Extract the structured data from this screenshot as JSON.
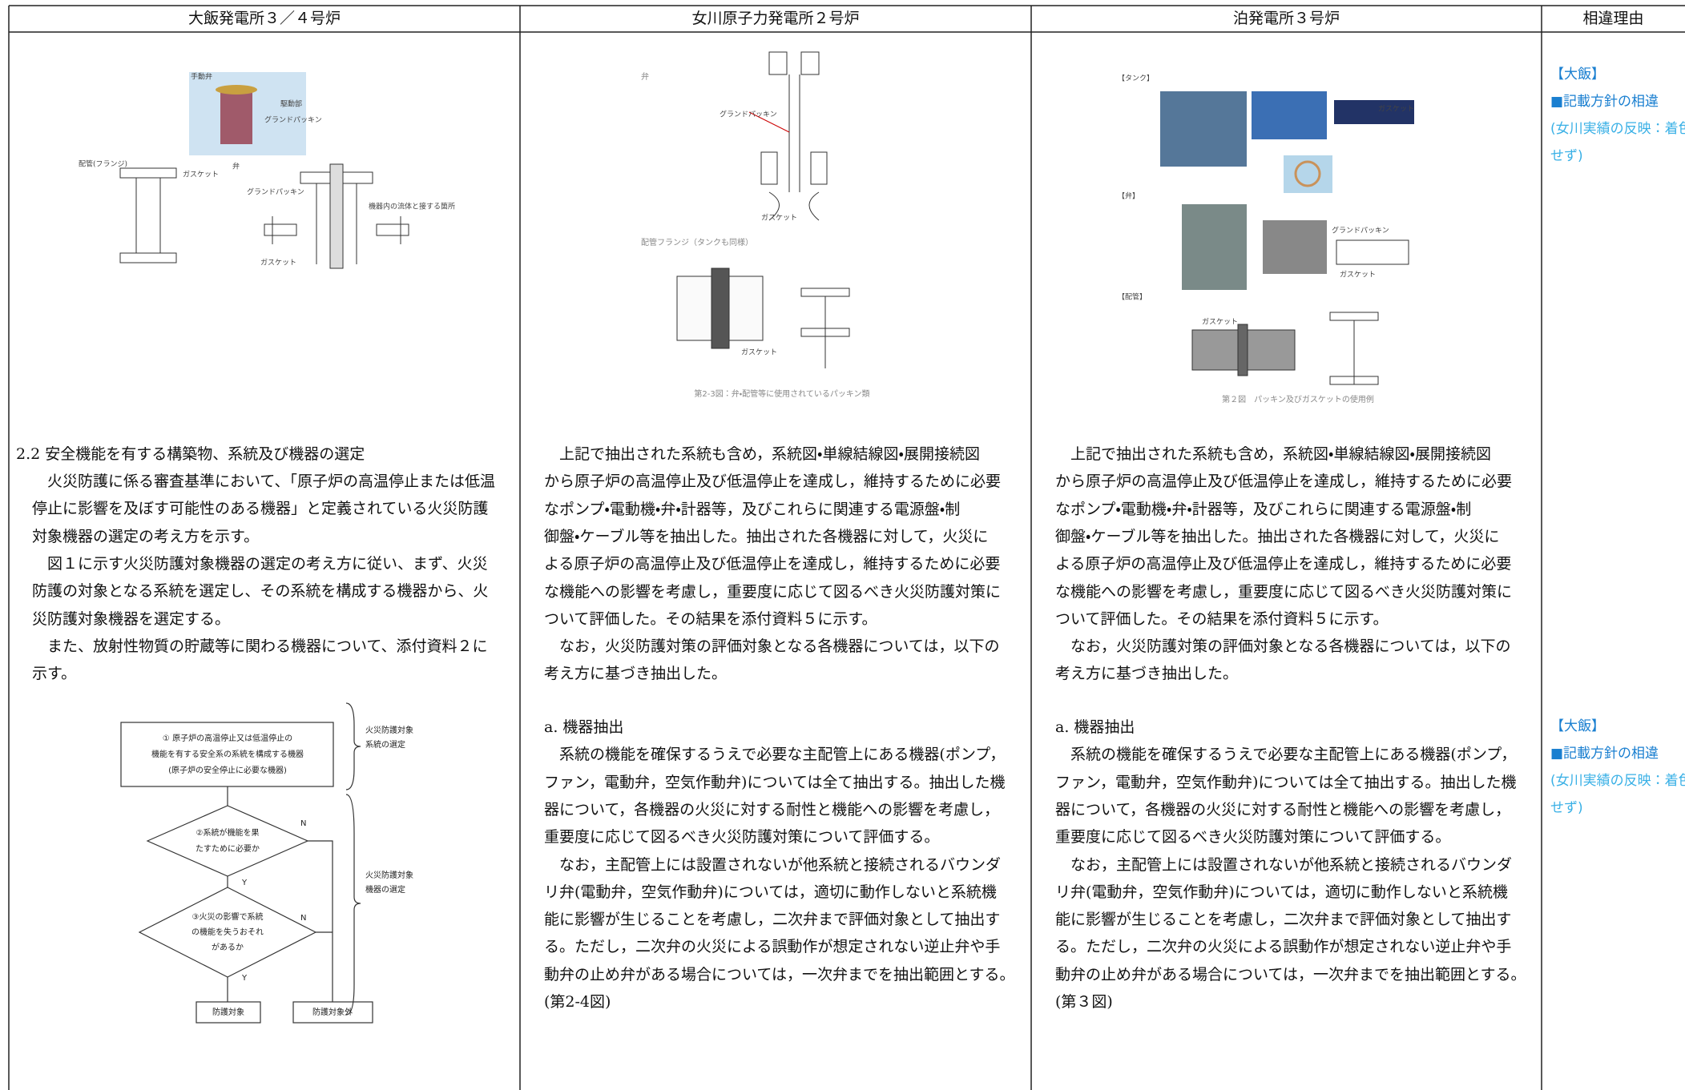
{
  "header": [
    "大飯発電所３／４号炉",
    "女川原子力発電所２号炉",
    "泊発電所３号炉",
    "相違理由"
  ],
  "columns": [
    {
      "blocks": [
        {
          "lines": [
            "2.2 安全機能を有する構築物、系統及び機器の選定"
          ]
        },
        {
          "lines": [
            "　火災防護に係る審査基準において、「原子炉の高温停止または低温",
            "停止に影響を及ぼす可能性のある機器」と定義されている火災防護",
            "対象機器の選定の考え方を示す。",
            "　図１に示す火災防護対象機器の選定の考え方に従い、まず、火災",
            "防護の対象となる系統を選定し、その系統を構成する機器から、火",
            "災防護対象機器を選定する。",
            "　また、放射性物質の貯蔵等に関わる機器について、添付資料２に",
            "示す。"
          ]
        }
      ],
      "figure_labels": [
        "手動弁",
        "駆動部",
        "グランドパッキン",
        "配管(フランジ)",
        "弁",
        "ガスケット",
        "グランドパッキン",
        "機器内の流体と接する箇所",
        "ガスケット"
      ]
    },
    {
      "blocks": [
        {
          "lines": [
            "　上記で抽出された系統も含め，系統図・単線結線図・展開接続図",
            "から原子炉の高温停止及び低温停止を達成し，維持するために必要",
            "なポンプ・電動機・弁・計器等，及びこれらに関連する電源盤・制",
            "御盤・ケーブル等を抽出した。抽出された各機器に対して，火災に",
            "よる原子炉の高温停止及び低温停止を達成し，維持するために必要",
            "な機能への影響を考慮し，重要度に応じて図るべき火災防護対策に",
            "ついて評価した。その結果を添付資料５に示す。",
            "　なお，火災防護対策の評価対象となる各機器については，以下の",
            "考え方に基づき抽出した。"
          ]
        },
        {
          "lines": [
            "a. 機器抽出",
            "　系統の機能を確保するうえで必要な主配管上にある機器(ポンプ，",
            "ファン，電動弁，空気作動弁)については全て抽出する。抽出した機",
            "器について，各機器の火災に対する耐性と機能への影響を考慮し，",
            "重要度に応じて図るべき火災防護対策について評価する。",
            "　なお，主配管上には設置されないが他系統と接続されるバウンダ",
            "リ弁(電動弁，空気作動弁)については，適切に動作しないと系統機",
            "能に影響が生じることを考慮し，二次弁まで評価対象として抽出す",
            "る。ただし，二次弁の火災による誤動作が想定されない逆止弁や手",
            "動弁の止め弁がある場合については，一次弁までを抽出範囲とする。",
            "(第2-4図)"
          ]
        }
      ],
      "figure_labels": [
        "弁",
        "グランドパッキン",
        "ガスケット",
        "配管フランジ（タンクも同様）",
        "ガスケット",
        "第2-3図：弁・配管等に使用されているパッキン類"
      ]
    },
    {
      "blocks": [
        {
          "lines": [
            "　上記で抽出された系統も含め，系統図・単線結線図・展開接続図",
            "から原子炉の高温停止及び低温停止を達成し，維持するために必要",
            "なポンプ・電動機・弁・計器等，及びこれらに関連する電源盤・制",
            "御盤・ケーブル等を抽出した。抽出された各機器に対して，火災に",
            "よる原子炉の高温停止及び低温停止を達成し，維持するために必要",
            "な機能への影響を考慮し，重要度に応じて図るべき火災防護対策に",
            "ついて評価した。その結果を添付資料５に示す。",
            "　なお，火災防護対策の評価対象となる各機器については，以下の",
            "考え方に基づき抽出した。"
          ]
        },
        {
          "lines": [
            "a. 機器抽出",
            "　系統の機能を確保するうえで必要な主配管上にある機器(ポンプ，",
            "ファン，電動弁，空気作動弁)については全て抽出する。抽出した機",
            "器について，各機器の火災に対する耐性と機能への影響を考慮し，",
            "重要度に応じて図るべき火災防護対策について評価する。",
            "　なお，主配管上には設置されないが他系統と接続されるバウンダ",
            "リ弁(電動弁，空気作動弁)については，適切に動作しないと系統機",
            "能に影響が生じることを考慮し，二次弁まで評価対象として抽出す",
            "る。ただし，二次弁の火災による誤動作が想定されない逆止弁や手",
            "動弁の止め弁がある場合については，一次弁までを抽出範囲とする。",
            "(第３図)"
          ]
        }
      ],
      "figure_labels": [
        "【タンク】",
        "ガスケット",
        "【弁】",
        "グランドパッキン",
        "ガスケット",
        "【配管】",
        "ガスケット",
        "第２図　パッキン及びガスケットの使用例"
      ]
    },
    {
      "blocks": [
        {
          "lines": [
            "【大飯】",
            "■記載方針の相違",
            "(女川実績の反映：着色",
            "せず)"
          ]
        },
        {
          "lines": [
            "【大飯】",
            "■記載方針の相違",
            "(女川実績の反映：着色",
            "せず)"
          ]
        }
      ]
    }
  ],
  "flowchart": {
    "start": [
      "① 原子炉の高温停止又は低温停止の",
      "機能を有する安全系の系統を構成する機器",
      "(原子炉の安全停止に必要な機器)"
    ],
    "decision1": [
      "②系統が機能を果",
      "たすために必要か"
    ],
    "decision2": [
      "③火災の影響で系統",
      "の機能を失うおそれ",
      "があるか"
    ],
    "no": "N",
    "yes": "Y",
    "target": "防護対象",
    "non_target": "防護対象外",
    "group1": [
      "火災防護対象",
      "系統の選定"
    ],
    "group2": [
      "火災防護対象",
      "機器の選定"
    ]
  }
}
